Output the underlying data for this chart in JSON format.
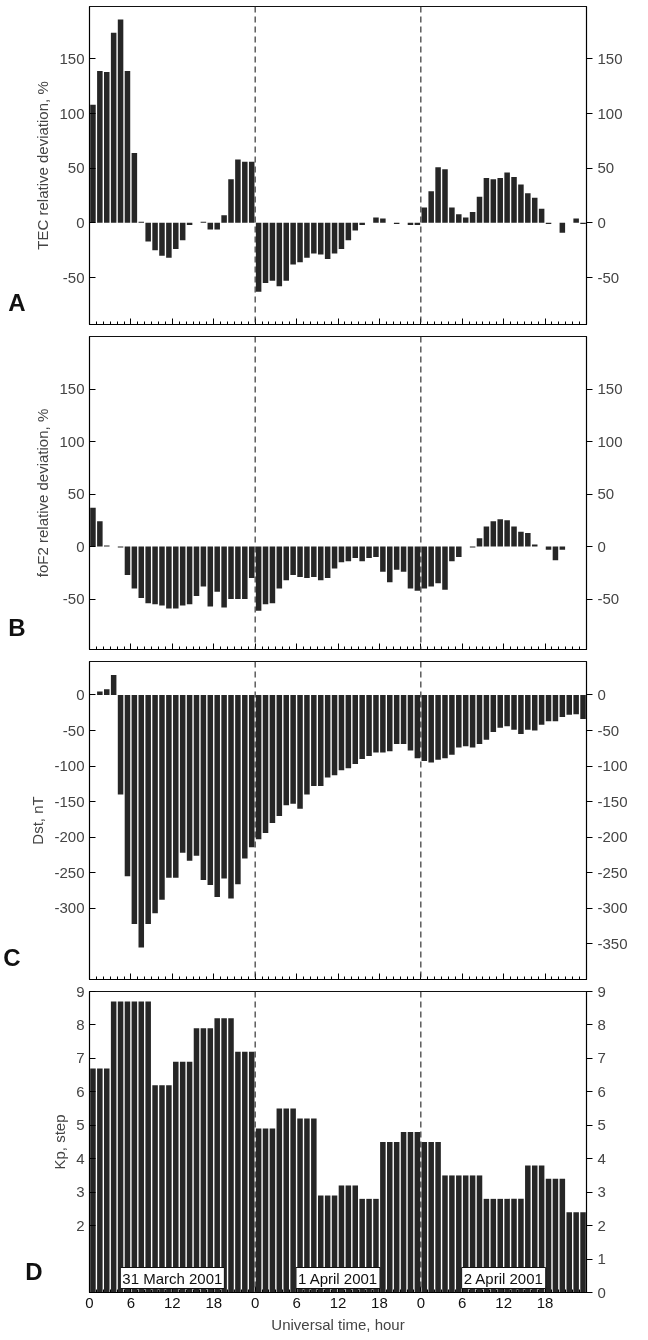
{
  "chart_data": [
    {
      "type": "bar",
      "ylabel": "TEC relative deviation, %",
      "color": "#262626",
      "x": [
        "2001-03-31T00:30",
        "2001-03-31T01:30",
        "2001-03-31T02:30",
        "2001-03-31T03:30",
        "2001-03-31T04:30",
        "2001-03-31T05:30",
        "2001-03-31T06:30",
        "2001-03-31T07:30",
        "2001-03-31T08:30",
        "2001-03-31T09:30",
        "2001-03-31T10:30",
        "2001-03-31T11:30",
        "2001-03-31T12:30",
        "2001-03-31T13:30",
        "2001-03-31T14:30",
        "2001-03-31T15:30",
        "2001-03-31T16:30",
        "2001-03-31T17:30",
        "2001-03-31T18:30",
        "2001-03-31T19:30",
        "2001-03-31T20:30",
        "2001-03-31T21:30",
        "2001-03-31T22:30",
        "2001-03-31T23:30",
        "2001-04-01T00:30",
        "2001-04-01T01:30",
        "2001-04-01T02:30",
        "2001-04-01T03:30",
        "2001-04-01T04:30",
        "2001-04-01T05:30",
        "2001-04-01T06:30",
        "2001-04-01T07:30",
        "2001-04-01T08:30",
        "2001-04-01T09:30",
        "2001-04-01T10:30",
        "2001-04-01T11:30",
        "2001-04-01T12:30",
        "2001-04-01T13:30",
        "2001-04-01T14:30",
        "2001-04-01T15:30",
        "2001-04-01T16:30",
        "2001-04-01T17:30",
        "2001-04-01T18:30",
        "2001-04-01T19:30",
        "2001-04-01T20:30",
        "2001-04-01T21:30",
        "2001-04-01T22:30",
        "2001-04-01T23:30",
        "2001-04-02T00:30",
        "2001-04-02T01:30",
        "2001-04-02T02:30",
        "2001-04-02T03:30",
        "2001-04-02T04:30",
        "2001-04-02T05:30",
        "2001-04-02T06:30",
        "2001-04-02T07:30",
        "2001-04-02T08:30",
        "2001-04-02T09:30",
        "2001-04-02T10:30",
        "2001-04-02T11:30",
        "2001-04-02T12:30",
        "2001-04-02T13:30",
        "2001-04-02T14:30",
        "2001-04-02T15:30",
        "2001-04-02T16:30",
        "2001-04-02T17:30",
        "2001-04-02T18:30",
        "2001-04-02T19:30",
        "2001-04-02T20:30",
        "2001-04-02T21:30",
        "2001-04-02T22:30",
        "2001-04-02T23:30"
      ],
      "values": [
        108,
        139,
        138,
        174,
        186,
        139,
        64,
        1,
        -17,
        -25,
        -30,
        -32,
        -24,
        -16,
        -2,
        null,
        1,
        -6,
        -6,
        7,
        40,
        58,
        56,
        56,
        -63,
        -55,
        -53,
        -58,
        -53,
        -38,
        -36,
        -32,
        -28,
        -29,
        -33,
        -28,
        -24,
        -16,
        -7,
        -2,
        null,
        5,
        4,
        null,
        -1,
        null,
        -2,
        -2,
        14,
        29,
        51,
        49,
        14,
        8,
        5,
        10,
        24,
        41,
        40,
        41,
        46,
        42,
        35,
        27,
        23,
        13,
        -1,
        null,
        -9,
        null,
        4,
        -1
      ],
      "xlim": [
        "2001-03-31T00:00",
        "2001-04-03T00:00"
      ],
      "xticks": [
        {
          "value": "2001-03-31T00:00",
          "label": null
        },
        {
          "value": "2001-03-31T06:00",
          "label": null
        },
        {
          "value": "2001-03-31T12:00",
          "label": null
        },
        {
          "value": "2001-03-31T18:00",
          "label": null
        },
        {
          "value": "2001-04-01T00:00",
          "label": null
        },
        {
          "value": "2001-04-01T06:00",
          "label": null
        },
        {
          "value": "2001-04-01T12:00",
          "label": null
        },
        {
          "value": "2001-04-01T18:00",
          "label": null
        },
        {
          "value": "2001-04-02T00:00",
          "label": null
        },
        {
          "value": "2001-04-02T06:00",
          "label": null
        },
        {
          "value": "2001-04-02T12:00",
          "label": null
        },
        {
          "value": "2001-04-02T18:00",
          "label": null
        }
      ],
      "ylim": [
        -93,
        198
      ],
      "yticks": [
        -50,
        0,
        50,
        100,
        150
      ],
      "y2lim": [
        -93,
        198
      ],
      "y2ticks": [
        -50,
        0,
        50,
        100,
        150
      ],
      "tick_labels": "y",
      "grid": false,
      "ref_lines": [
        {
          "axis": "x",
          "value": "2001-04-01T00:00",
          "label": null,
          "color": "#333333",
          "line_style": "dashed"
        },
        {
          "axis": "x",
          "value": "2001-04-02T00:00",
          "label": null,
          "color": "#333333",
          "line_style": "dashed"
        }
      ],
      "annotations": [
        "A"
      ]
    },
    {
      "type": "bar",
      "ylabel": "foF2 relative deviation, %",
      "color": "#262626",
      "x": [
        "2001-03-31T00:30",
        "2001-03-31T01:30",
        "2001-03-31T02:30",
        "2001-03-31T03:30",
        "2001-03-31T04:30",
        "2001-03-31T05:30",
        "2001-03-31T06:30",
        "2001-03-31T07:30",
        "2001-03-31T08:30",
        "2001-03-31T09:30",
        "2001-03-31T10:30",
        "2001-03-31T11:30",
        "2001-03-31T12:30",
        "2001-03-31T13:30",
        "2001-03-31T14:30",
        "2001-03-31T15:30",
        "2001-03-31T16:30",
        "2001-03-31T17:30",
        "2001-03-31T18:30",
        "2001-03-31T19:30",
        "2001-03-31T20:30",
        "2001-03-31T21:30",
        "2001-03-31T22:30",
        "2001-03-31T23:30",
        "2001-04-01T00:30",
        "2001-04-01T01:30",
        "2001-04-01T02:30",
        "2001-04-01T03:30",
        "2001-04-01T04:30",
        "2001-04-01T05:30",
        "2001-04-01T06:30",
        "2001-04-01T07:30",
        "2001-04-01T08:30",
        "2001-04-01T09:30",
        "2001-04-01T10:30",
        "2001-04-01T11:30",
        "2001-04-01T12:30",
        "2001-04-01T13:30",
        "2001-04-01T14:30",
        "2001-04-01T15:30",
        "2001-04-01T16:30",
        "2001-04-01T17:30",
        "2001-04-01T18:30",
        "2001-04-01T19:30",
        "2001-04-01T20:30",
        "2001-04-01T21:30",
        "2001-04-01T22:30",
        "2001-04-01T23:30",
        "2001-04-02T00:30",
        "2001-04-02T01:30",
        "2001-04-02T02:30",
        "2001-04-02T03:30",
        "2001-04-02T04:30",
        "2001-04-02T05:30",
        "2001-04-02T06:30",
        "2001-04-02T07:30",
        "2001-04-02T08:30",
        "2001-04-02T09:30",
        "2001-04-02T10:30",
        "2001-04-02T11:30",
        "2001-04-02T12:30",
        "2001-04-02T13:30",
        "2001-04-02T14:30",
        "2001-04-02T15:30",
        "2001-04-02T16:30",
        "2001-04-02T17:30",
        "2001-04-02T18:30",
        "2001-04-02T19:30",
        "2001-04-02T20:30"
      ],
      "values": [
        37,
        24,
        1,
        null,
        -1,
        -27,
        -40,
        -49,
        -54,
        -55,
        -56,
        -59,
        -59,
        -56,
        -55,
        -47,
        -38,
        -57,
        -43,
        -58,
        -50,
        -50,
        -50,
        -30,
        -61,
        -55,
        -54,
        -40,
        -32,
        -27,
        -29,
        -30,
        -29,
        -32,
        -30,
        -21,
        -15,
        -14,
        -11,
        -14,
        -11,
        -10,
        -24,
        -34,
        -22,
        -24,
        -40,
        -42,
        -40,
        -38,
        -35,
        -41,
        -14,
        -10,
        null,
        -1,
        8,
        19,
        24,
        26,
        25,
        19,
        14,
        13,
        2,
        null,
        -3,
        -13,
        -3
      ],
      "xlim": [
        "2001-03-31T00:00",
        "2001-04-03T00:00"
      ],
      "xticks": [
        {
          "value": "2001-03-31T00:00",
          "label": null
        },
        {
          "value": "2001-03-31T06:00",
          "label": null
        },
        {
          "value": "2001-03-31T12:00",
          "label": null
        },
        {
          "value": "2001-03-31T18:00",
          "label": null
        },
        {
          "value": "2001-04-01T00:00",
          "label": null
        },
        {
          "value": "2001-04-01T06:00",
          "label": null
        },
        {
          "value": "2001-04-01T12:00",
          "label": null
        },
        {
          "value": "2001-04-01T18:00",
          "label": null
        },
        {
          "value": "2001-04-02T00:00",
          "label": null
        },
        {
          "value": "2001-04-02T06:00",
          "label": null
        },
        {
          "value": "2001-04-02T12:00",
          "label": null
        },
        {
          "value": "2001-04-02T18:00",
          "label": null
        }
      ],
      "ylim": [
        -98,
        200
      ],
      "yticks": [
        -50,
        0,
        50,
        100,
        150
      ],
      "y2lim": [
        -98,
        200
      ],
      "y2ticks": [
        -50,
        0,
        50,
        100,
        150
      ],
      "tick_labels": "y",
      "grid": false,
      "ref_lines": [
        {
          "axis": "x",
          "value": "2001-04-01T00:00",
          "label": null,
          "color": "#333333",
          "line_style": "dashed"
        },
        {
          "axis": "x",
          "value": "2001-04-02T00:00",
          "label": null,
          "color": "#333333",
          "line_style": "dashed"
        }
      ],
      "annotations": [
        "B"
      ]
    },
    {
      "type": "bar",
      "ylabel": "Dst, nT",
      "color": "#262626",
      "x": [
        "2001-03-31T01:30",
        "2001-03-31T02:30",
        "2001-03-31T03:30",
        "2001-03-31T04:30",
        "2001-03-31T05:30",
        "2001-03-31T06:30",
        "2001-03-31T07:30",
        "2001-03-31T08:30",
        "2001-03-31T09:30",
        "2001-03-31T10:30",
        "2001-03-31T11:30",
        "2001-03-31T12:30",
        "2001-03-31T13:30",
        "2001-03-31T14:30",
        "2001-03-31T15:30",
        "2001-03-31T16:30",
        "2001-03-31T17:30",
        "2001-03-31T18:30",
        "2001-03-31T19:30",
        "2001-03-31T20:30",
        "2001-03-31T21:30",
        "2001-03-31T22:30",
        "2001-03-31T23:30",
        "2001-04-01T00:30",
        "2001-04-01T01:30",
        "2001-04-01T02:30",
        "2001-04-01T03:30",
        "2001-04-01T04:30",
        "2001-04-01T05:30",
        "2001-04-01T06:30",
        "2001-04-01T07:30",
        "2001-04-01T08:30",
        "2001-04-01T09:30",
        "2001-04-01T10:30",
        "2001-04-01T11:30",
        "2001-04-01T12:30",
        "2001-04-01T13:30",
        "2001-04-01T14:30",
        "2001-04-01T15:30",
        "2001-04-01T16:30",
        "2001-04-01T17:30",
        "2001-04-01T18:30",
        "2001-04-01T19:30",
        "2001-04-01T20:30",
        "2001-04-01T21:30",
        "2001-04-01T22:30",
        "2001-04-01T23:30",
        "2001-04-02T00:30",
        "2001-04-02T01:30",
        "2001-04-02T02:30",
        "2001-04-02T03:30",
        "2001-04-02T04:30",
        "2001-04-02T05:30",
        "2001-04-02T06:30",
        "2001-04-02T07:30",
        "2001-04-02T08:30",
        "2001-04-02T09:30",
        "2001-04-02T10:30",
        "2001-04-02T11:30",
        "2001-04-02T12:30",
        "2001-04-02T13:30",
        "2001-04-02T14:30",
        "2001-04-02T15:30",
        "2001-04-02T16:30",
        "2001-04-02T17:30",
        "2001-04-02T18:30",
        "2001-04-02T19:30",
        "2001-04-02T20:30",
        "2001-04-02T21:30",
        "2001-04-02T22:30",
        "2001-04-02T23:30"
      ],
      "values": [
        5,
        8,
        28,
        -140,
        -255,
        -322,
        -355,
        -322,
        -307,
        -288,
        -257,
        -257,
        -222,
        -233,
        -226,
        -260,
        -267,
        -284,
        -258,
        -286,
        -266,
        -230,
        -214,
        -203,
        -194,
        -180,
        -170,
        -155,
        -153,
        -160,
        -140,
        -128,
        -128,
        -116,
        -113,
        -106,
        -103,
        -97,
        -90,
        -86,
        -81,
        -81,
        -79,
        -69,
        -69,
        -78,
        -89,
        -93,
        -95,
        -91,
        -89,
        -84,
        -74,
        -72,
        -74,
        -69,
        -63,
        -52,
        -46,
        -44,
        -49,
        -55,
        -49,
        -50,
        -42,
        -37,
        -37,
        -31,
        -28,
        -27,
        -34
      ],
      "xlim": [
        "2001-03-31T00:00",
        "2001-04-03T00:00"
      ],
      "xticks": [
        {
          "value": "2001-03-31T00:00",
          "label": null
        },
        {
          "value": "2001-03-31T06:00",
          "label": null
        },
        {
          "value": "2001-03-31T12:00",
          "label": null
        },
        {
          "value": "2001-03-31T18:00",
          "label": null
        },
        {
          "value": "2001-04-01T00:00",
          "label": null
        },
        {
          "value": "2001-04-01T06:00",
          "label": null
        },
        {
          "value": "2001-04-01T12:00",
          "label": null
        },
        {
          "value": "2001-04-01T18:00",
          "label": null
        },
        {
          "value": "2001-04-02T00:00",
          "label": null
        },
        {
          "value": "2001-04-02T06:00",
          "label": null
        },
        {
          "value": "2001-04-02T12:00",
          "label": null
        },
        {
          "value": "2001-04-02T18:00",
          "label": null
        }
      ],
      "ylim": [
        -400,
        47
      ],
      "yticks": [
        -300,
        -250,
        -200,
        -150,
        -100,
        -50,
        0
      ],
      "y2lim": [
        -400,
        47
      ],
      "y2ticks": [
        -350,
        -300,
        -250,
        -200,
        -150,
        -100,
        -50,
        0
      ],
      "tick_labels": "y",
      "grid": false,
      "ref_lines": [
        {
          "axis": "x",
          "value": "2001-04-01T00:00",
          "label": null,
          "color": "#333333",
          "line_style": "dashed"
        },
        {
          "axis": "x",
          "value": "2001-04-02T00:00",
          "label": null,
          "color": "#333333",
          "line_style": "dashed"
        }
      ],
      "annotations": [
        "C"
      ]
    },
    {
      "type": "bar",
      "ylabel": "Kp, step",
      "xlabel": "Universal time, hour",
      "color": "#262626",
      "x": [
        "2001-03-31T00:30",
        "2001-03-31T01:30",
        "2001-03-31T02:30",
        "2001-03-31T03:30",
        "2001-03-31T04:30",
        "2001-03-31T05:30",
        "2001-03-31T06:30",
        "2001-03-31T07:30",
        "2001-03-31T08:30",
        "2001-03-31T09:30",
        "2001-03-31T10:30",
        "2001-03-31T11:30",
        "2001-03-31T12:30",
        "2001-03-31T13:30",
        "2001-03-31T14:30",
        "2001-03-31T15:30",
        "2001-03-31T16:30",
        "2001-03-31T17:30",
        "2001-03-31T18:30",
        "2001-03-31T19:30",
        "2001-03-31T20:30",
        "2001-03-31T21:30",
        "2001-03-31T22:30",
        "2001-03-31T23:30",
        "2001-04-01T00:30",
        "2001-04-01T01:30",
        "2001-04-01T02:30",
        "2001-04-01T03:30",
        "2001-04-01T04:30",
        "2001-04-01T05:30",
        "2001-04-01T06:30",
        "2001-04-01T07:30",
        "2001-04-01T08:30",
        "2001-04-01T09:30",
        "2001-04-01T10:30",
        "2001-04-01T11:30",
        "2001-04-01T12:30",
        "2001-04-01T13:30",
        "2001-04-01T14:30",
        "2001-04-01T15:30",
        "2001-04-01T16:30",
        "2001-04-01T17:30",
        "2001-04-01T18:30",
        "2001-04-01T19:30",
        "2001-04-01T20:30",
        "2001-04-01T21:30",
        "2001-04-01T22:30",
        "2001-04-01T23:30",
        "2001-04-02T00:30",
        "2001-04-02T01:30",
        "2001-04-02T02:30",
        "2001-04-02T03:30",
        "2001-04-02T04:30",
        "2001-04-02T05:30",
        "2001-04-02T06:30",
        "2001-04-02T07:30",
        "2001-04-02T08:30",
        "2001-04-02T09:30",
        "2001-04-02T10:30",
        "2001-04-02T11:30",
        "2001-04-02T12:30",
        "2001-04-02T13:30",
        "2001-04-02T14:30",
        "2001-04-02T15:30",
        "2001-04-02T16:30",
        "2001-04-02T17:30",
        "2001-04-02T18:30",
        "2001-04-02T19:30",
        "2001-04-02T20:30",
        "2001-04-02T21:30",
        "2001-04-02T22:30",
        "2001-04-02T23:30"
      ],
      "values": [
        6.7,
        6.7,
        6.7,
        8.7,
        8.7,
        8.7,
        8.7,
        8.7,
        8.7,
        6.2,
        6.2,
        6.2,
        6.9,
        6.9,
        6.9,
        7.9,
        7.9,
        7.9,
        8.2,
        8.2,
        8.2,
        7.2,
        7.2,
        7.2,
        4.9,
        4.9,
        4.9,
        5.5,
        5.5,
        5.5,
        5.2,
        5.2,
        5.2,
        2.9,
        2.9,
        2.9,
        3.2,
        3.2,
        3.2,
        2.8,
        2.8,
        2.8,
        4.5,
        4.5,
        4.5,
        4.8,
        4.8,
        4.8,
        4.5,
        4.5,
        4.5,
        3.5,
        3.5,
        3.5,
        3.5,
        3.5,
        3.5,
        2.8,
        2.8,
        2.8,
        2.8,
        2.8,
        2.8,
        3.8,
        3.8,
        3.8,
        3.4,
        3.4,
        3.4,
        2.4,
        2.4,
        2.4
      ],
      "xlim": [
        "2001-03-31T00:00",
        "2001-04-03T00:00"
      ],
      "xticks": [
        {
          "value": "2001-03-31T00:00",
          "label": "0"
        },
        {
          "value": "2001-03-31T06:00",
          "label": "6"
        },
        {
          "value": "2001-03-31T12:00",
          "label": "12"
        },
        {
          "value": "2001-03-31T18:00",
          "label": "18"
        },
        {
          "value": "2001-04-01T00:00",
          "label": "0"
        },
        {
          "value": "2001-04-01T06:00",
          "label": "6"
        },
        {
          "value": "2001-04-01T12:00",
          "label": "12"
        },
        {
          "value": "2001-04-01T18:00",
          "label": "18"
        },
        {
          "value": "2001-04-02T00:00",
          "label": "0"
        },
        {
          "value": "2001-04-02T06:00",
          "label": "6"
        },
        {
          "value": "2001-04-02T12:00",
          "label": "12"
        },
        {
          "value": "2001-04-02T18:00",
          "label": "18"
        }
      ],
      "ylim": [
        0,
        9
      ],
      "yticks": [
        2,
        3,
        4,
        5,
        6,
        7,
        8,
        9
      ],
      "y2lim": [
        0,
        9
      ],
      "y2ticks": [
        0,
        1,
        2,
        3,
        4,
        5,
        6,
        7,
        8,
        9
      ],
      "grid": false,
      "ref_lines": [
        {
          "axis": "x",
          "value": "2001-04-01T00:00",
          "label": null,
          "color": "#333333",
          "line_style": "dashed"
        },
        {
          "axis": "x",
          "value": "2001-04-02T00:00",
          "label": null,
          "color": "#333333",
          "line_style": "dashed"
        }
      ],
      "annotations": [
        "D",
        "31 March 2001",
        "1 April 2001",
        "2 April 2001"
      ]
    }
  ]
}
